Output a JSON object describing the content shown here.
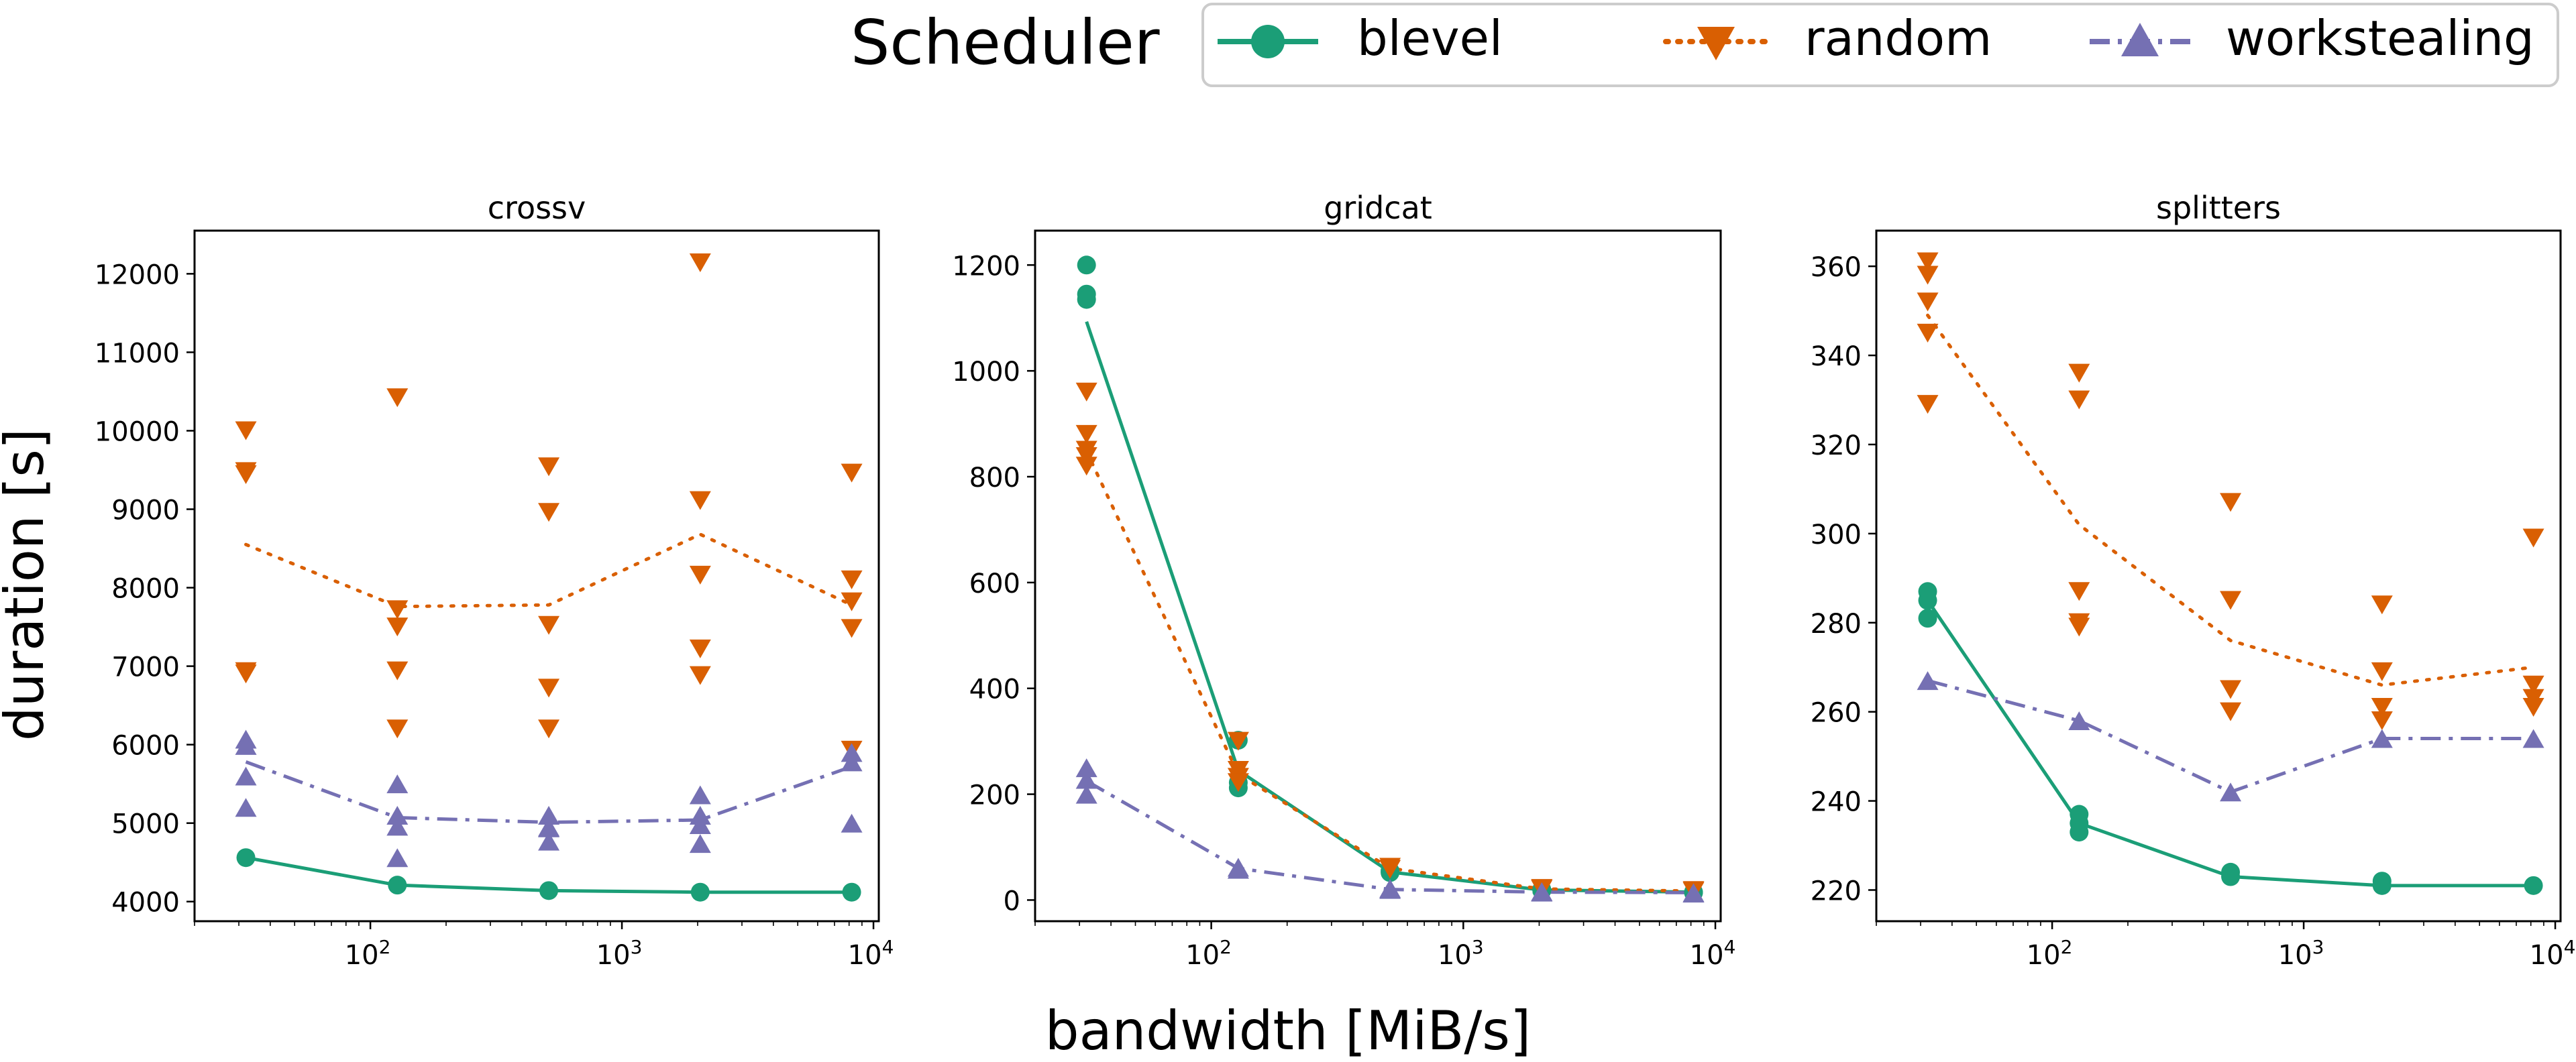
{
  "legend": {
    "title": "Scheduler",
    "entries": [
      {
        "label": "blevel",
        "color": "#1b9e77",
        "marker": "circle",
        "line": "solid"
      },
      {
        "label": "random",
        "color": "#d95f02",
        "marker": "triangle-down",
        "line": "dotted"
      },
      {
        "label": "workstealing",
        "color": "#7570b3",
        "marker": "triangle-up",
        "line": "dashdot"
      }
    ]
  },
  "axes": {
    "xlabel": "bandwidth [MiB/s]",
    "ylabel": "duration [s]",
    "xticks": [
      {
        "base": "10",
        "exp": "2"
      },
      {
        "base": "10",
        "exp": "3"
      },
      {
        "base": "10",
        "exp": "4"
      }
    ]
  },
  "chart_data": [
    {
      "type": "scatter",
      "title": "crossv",
      "xscale": "log",
      "x": [
        32,
        128,
        512,
        2048,
        8192
      ],
      "xlim": [
        20,
        10500
      ],
      "ylim": [
        3750,
        12550
      ],
      "yticks": [
        4000,
        5000,
        6000,
        7000,
        8000,
        9000,
        10000,
        11000,
        12000
      ],
      "series": [
        {
          "name": "blevel",
          "points": [
            [
              32,
              4560
            ],
            [
              128,
              4210
            ],
            [
              512,
              4140
            ],
            [
              2048,
              4120
            ],
            [
              8192,
              4120
            ]
          ],
          "mean": [
            4560,
            4210,
            4140,
            4120,
            4120
          ]
        },
        {
          "name": "random",
          "points": [
            [
              32,
              10000
            ],
            [
              32,
              9480
            ],
            [
              32,
              9440
            ],
            [
              32,
              6930
            ],
            [
              32,
              6900
            ],
            [
              128,
              10420
            ],
            [
              128,
              7720
            ],
            [
              128,
              7500
            ],
            [
              128,
              6940
            ],
            [
              128,
              6200
            ],
            [
              512,
              9540
            ],
            [
              512,
              8960
            ],
            [
              512,
              7520
            ],
            [
              512,
              6720
            ],
            [
              512,
              6200
            ],
            [
              2048,
              12140
            ],
            [
              2048,
              9110
            ],
            [
              2048,
              8160
            ],
            [
              2048,
              7220
            ],
            [
              2048,
              6880
            ],
            [
              8192,
              9460
            ],
            [
              8192,
              8100
            ],
            [
              8192,
              7820
            ],
            [
              8192,
              7480
            ],
            [
              8192,
              5930
            ]
          ],
          "mean": [
            8550,
            7760,
            7780,
            8680,
            7780
          ]
        },
        {
          "name": "workstealing",
          "points": [
            [
              32,
              6070
            ],
            [
              32,
              5990
            ],
            [
              32,
              5600
            ],
            [
              32,
              5200
            ],
            [
              128,
              5500
            ],
            [
              128,
              5100
            ],
            [
              128,
              4960
            ],
            [
              128,
              4560
            ],
            [
              512,
              5100
            ],
            [
              512,
              4950
            ],
            [
              512,
              4940
            ],
            [
              512,
              4770
            ],
            [
              2048,
              5360
            ],
            [
              2048,
              5100
            ],
            [
              2048,
              4980
            ],
            [
              2048,
              4740
            ],
            [
              8192,
              5900
            ],
            [
              8192,
              5780
            ],
            [
              8192,
              5000
            ]
          ],
          "mean": [
            5780,
            5070,
            5010,
            5040,
            5720
          ]
        }
      ]
    },
    {
      "type": "scatter",
      "title": "gridcat",
      "xscale": "log",
      "x": [
        32,
        128,
        512,
        2048,
        8192
      ],
      "xlim": [
        20,
        10500
      ],
      "ylim": [
        -40,
        1265
      ],
      "yticks": [
        0,
        200,
        400,
        600,
        800,
        1000,
        1200
      ],
      "series": [
        {
          "name": "blevel",
          "points": [
            [
              32,
              1200
            ],
            [
              32,
              1145
            ],
            [
              32,
              1135
            ],
            [
              128,
              302
            ],
            [
              128,
              222
            ],
            [
              128,
              212
            ],
            [
              512,
              55
            ],
            [
              512,
              52
            ],
            [
              2048,
              20
            ],
            [
              2048,
              18
            ],
            [
              8192,
              15
            ],
            [
              8192,
              14
            ]
          ],
          "mean": [
            1093,
            245,
            53,
            19,
            15
          ]
        },
        {
          "name": "random",
          "points": [
            [
              32,
              960
            ],
            [
              32,
              880
            ],
            [
              32,
              850
            ],
            [
              32,
              838
            ],
            [
              32,
              820
            ],
            [
              128,
              300
            ],
            [
              128,
              245
            ],
            [
              128,
              232
            ],
            [
              128,
              222
            ],
            [
              512,
              62
            ],
            [
              512,
              58
            ],
            [
              2048,
              22
            ],
            [
              2048,
              20
            ],
            [
              8192,
              18
            ],
            [
              8192,
              16
            ]
          ],
          "mean": [
            848,
            238,
            60,
            21,
            17
          ]
        },
        {
          "name": "workstealing",
          "points": [
            [
              32,
              250
            ],
            [
              32,
              228
            ],
            [
              32,
              200
            ],
            [
              128,
              62
            ],
            [
              128,
              58
            ],
            [
              512,
              22
            ],
            [
              512,
              20
            ],
            [
              2048,
              16
            ],
            [
              2048,
              15
            ],
            [
              8192,
              14
            ],
            [
              8192,
              13
            ]
          ],
          "mean": [
            225,
            60,
            20,
            15,
            14
          ]
        }
      ]
    },
    {
      "type": "scatter",
      "title": "splitters",
      "xscale": "log",
      "x": [
        32,
        128,
        512,
        2048,
        8192
      ],
      "xlim": [
        20,
        10500
      ],
      "ylim": [
        213,
        368
      ],
      "yticks": [
        220,
        240,
        260,
        280,
        300,
        320,
        340,
        360
      ],
      "series": [
        {
          "name": "blevel",
          "points": [
            [
              32,
              287
            ],
            [
              32,
              285
            ],
            [
              32,
              281
            ],
            [
              128,
              237
            ],
            [
              128,
              235
            ],
            [
              128,
              233
            ],
            [
              512,
              224
            ],
            [
              512,
              223
            ],
            [
              2048,
              222
            ],
            [
              2048,
              221
            ],
            [
              8192,
              221
            ]
          ],
          "mean": [
            285,
            235,
            223,
            221,
            221
          ]
        },
        {
          "name": "random",
          "points": [
            [
              32,
              361
            ],
            [
              32,
              358
            ],
            [
              32,
              352
            ],
            [
              32,
              345
            ],
            [
              32,
              329
            ],
            [
              128,
              336
            ],
            [
              128,
              330
            ],
            [
              128,
              287
            ],
            [
              128,
              280
            ],
            [
              128,
              279
            ],
            [
              512,
              307
            ],
            [
              512,
              285
            ],
            [
              512,
              265
            ],
            [
              512,
              260
            ],
            [
              2048,
              284
            ],
            [
              2048,
              269
            ],
            [
              2048,
              261
            ],
            [
              2048,
              258
            ],
            [
              8192,
              299
            ],
            [
              8192,
              266
            ],
            [
              8192,
              263
            ],
            [
              8192,
              261
            ]
          ],
          "mean": [
            349,
            302,
            276,
            266,
            270
          ]
        },
        {
          "name": "workstealing",
          "points": [
            [
              32,
              267
            ],
            [
              128,
              258
            ],
            [
              512,
              242
            ],
            [
              2048,
              254
            ],
            [
              8192,
              254
            ]
          ],
          "mean": [
            267,
            258,
            242,
            254,
            254
          ]
        }
      ]
    }
  ]
}
